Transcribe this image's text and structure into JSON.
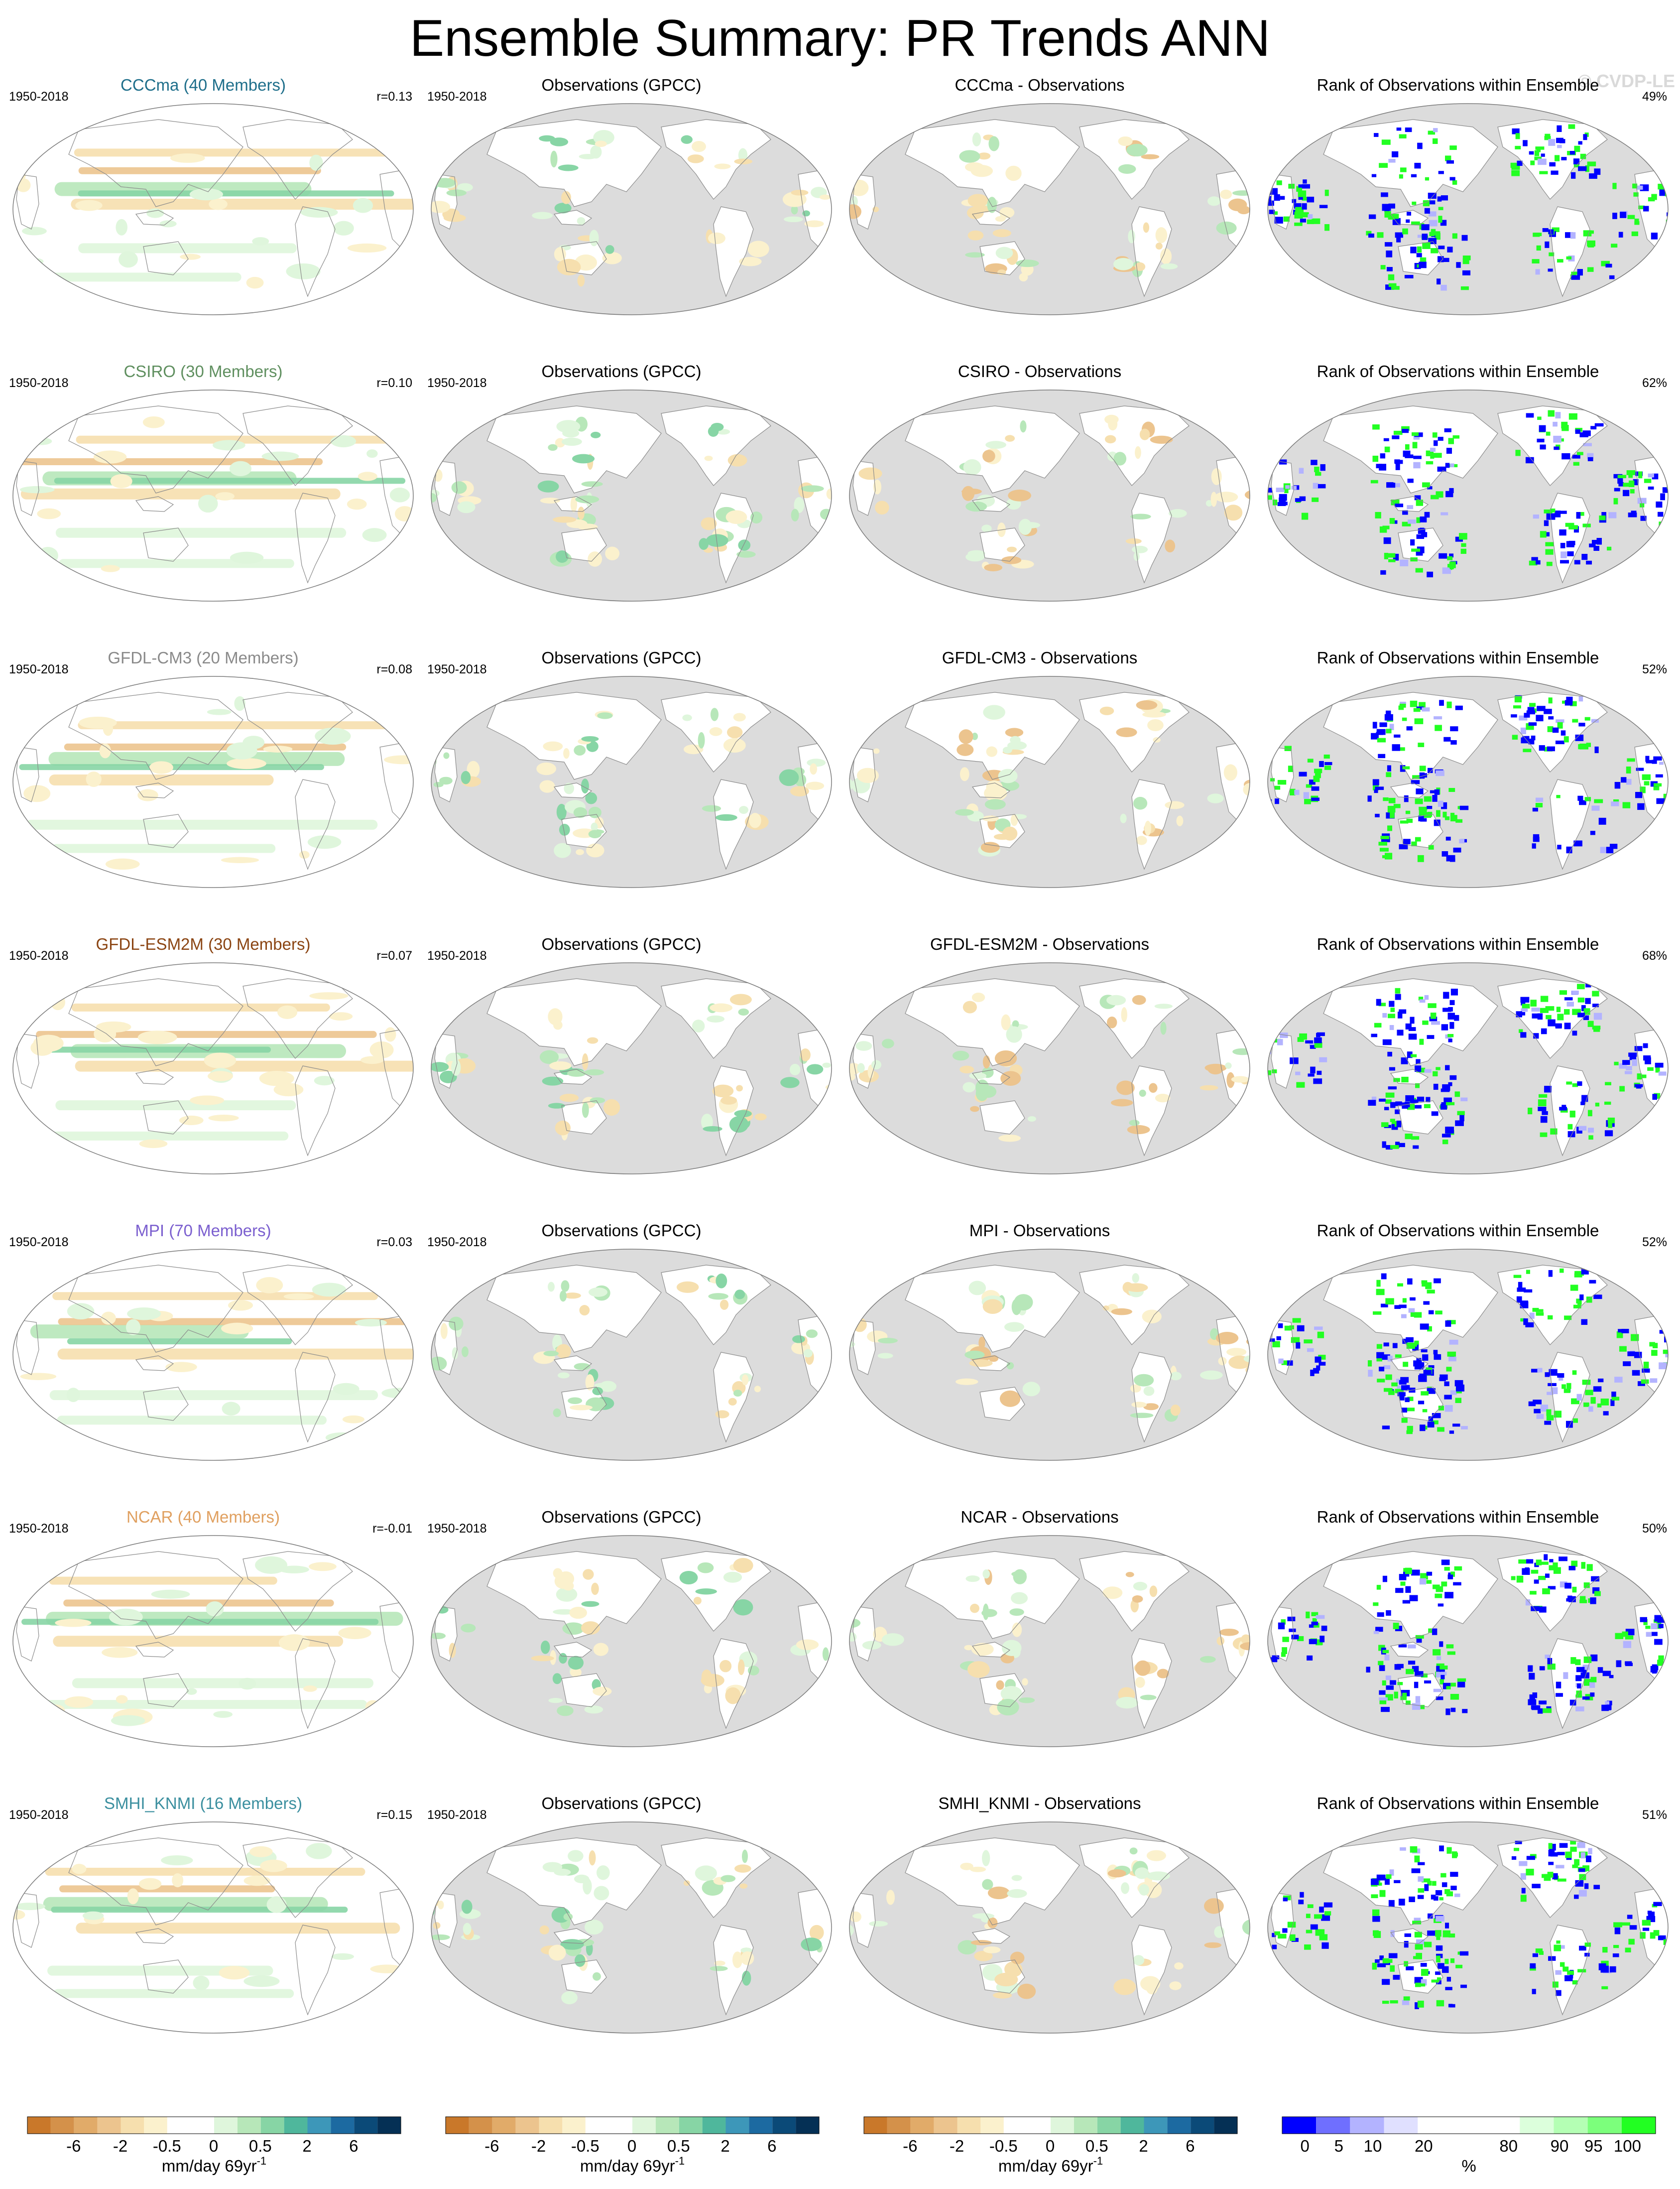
{
  "title": "Ensemble Summary: PR Trends ANN",
  "watermark": "© CVDP-LE",
  "period": "1950-2018",
  "obs_title": "Observations (GPCC)",
  "rank_title": "Rank of Observations within Ensemble",
  "colors": {
    "land_gray": "#dcdcdc",
    "coast": "#8c8c8c",
    "trend_scale": [
      "#c9782a",
      "#d4914a",
      "#e1ab69",
      "#ecc48e",
      "#f6dfae",
      "#fbf1cd",
      "#ffffff",
      "#ffffff",
      "#dff6dc",
      "#b7e7b9",
      "#87d5a5",
      "#4fb79c",
      "#3d97b9",
      "#1c6aa1",
      "#0b4a78",
      "#053055"
    ],
    "rank_scale": [
      "#0000ff",
      "#6f6fff",
      "#b3b3ff",
      "#e0e0ff",
      "#ffffff",
      "#ffffff",
      "#ffffff",
      "#dcffdc",
      "#b4ffb4",
      "#7cff7c",
      "#22ff22"
    ]
  },
  "rows": [
    {
      "model": "CCCma (40 Members)",
      "model_color": "#1f6f8b",
      "r": "r=0.13",
      "diff_title": "CCCma - Observations",
      "rank_pct": "49%"
    },
    {
      "model": "CSIRO (30 Members)",
      "model_color": "#5f8f5f",
      "r": "r=0.10",
      "diff_title": "CSIRO - Observations",
      "rank_pct": "62%"
    },
    {
      "model": "GFDL-CM3 (20 Members)",
      "model_color": "#8a8a8a",
      "r": "r=0.08",
      "diff_title": "GFDL-CM3 - Observations",
      "rank_pct": "52%"
    },
    {
      "model": "GFDL-ESM2M (30 Members)",
      "model_color": "#8b4513",
      "r": "r=0.07",
      "diff_title": "GFDL-ESM2M - Observations",
      "rank_pct": "68%"
    },
    {
      "model": "MPI (70 Members)",
      "model_color": "#7b5fcf",
      "r": "r=0.03",
      "diff_title": "MPI - Observations",
      "rank_pct": "52%"
    },
    {
      "model": "NCAR (40 Members)",
      "model_color": "#e0a060",
      "r": "r=-0.01",
      "diff_title": "NCAR - Observations",
      "rank_pct": "50%"
    },
    {
      "model": "SMHI_KNMI (16 Members)",
      "model_color": "#3b8f9f",
      "r": "r=0.15",
      "diff_title": "SMHI_KNMI - Observations",
      "rank_pct": "51%"
    }
  ],
  "colorbars": {
    "trend_ticks": [
      "-6",
      "-2",
      "-0.5",
      "0",
      "0.5",
      "2",
      "6"
    ],
    "trend_units": "mm/day 69yr",
    "trend_units_sup": "-1",
    "rank_ticks": [
      "0",
      "5",
      "10",
      "20",
      "80",
      "90",
      "95",
      "100"
    ],
    "rank_units": "%"
  }
}
